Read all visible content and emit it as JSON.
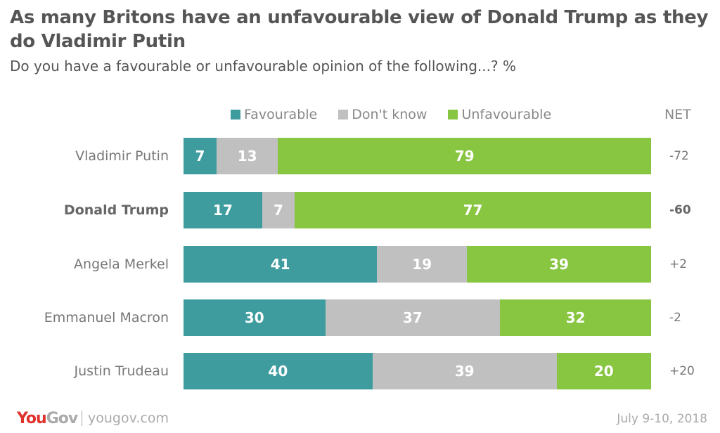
{
  "title": "As many Britons have an unfavourable view of Donald Trump as they do Vladimir Putin",
  "subtitle": "Do you have a favourable or unfavourable opinion of the following...? %",
  "footer": {
    "logo": "YouGov",
    "site": "yougov.com",
    "date": "July 9-10, 2018"
  },
  "chart_data": {
    "type": "bar",
    "orientation": "horizontal-stacked",
    "net_label": "NET",
    "legend": [
      "Favourable",
      "Don't know",
      "Unfavourable"
    ],
    "colors": [
      "#3f9c9e",
      "#c0c0c0",
      "#88c541"
    ],
    "categories": [
      "Vladimir Putin",
      "Donald Trump",
      "Angela Merkel",
      "Emmanuel Macron",
      "Justin Trudeau"
    ],
    "highlight": "Donald Trump",
    "series": [
      {
        "name": "Favourable",
        "values": [
          7,
          17,
          41,
          30,
          40
        ]
      },
      {
        "name": "Don't know",
        "values": [
          13,
          7,
          19,
          37,
          39
        ]
      },
      {
        "name": "Unfavourable",
        "values": [
          79,
          77,
          39,
          32,
          20
        ]
      }
    ],
    "net": [
      "-72",
      "-60",
      "+2",
      "-2",
      "+20"
    ]
  }
}
